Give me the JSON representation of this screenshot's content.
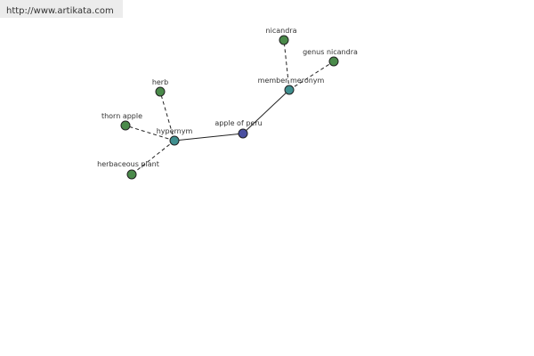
{
  "header": {
    "url": "http://www.artikata.com"
  },
  "nodes": [
    {
      "label": "apple of peru"
    },
    {
      "label": "hypernym"
    },
    {
      "label": "member meronym"
    },
    {
      "label": "herb"
    },
    {
      "label": "thorn apple"
    },
    {
      "label": "herbaceous plant"
    },
    {
      "label": "nicandra"
    },
    {
      "label": "genus nicandra"
    }
  ]
}
